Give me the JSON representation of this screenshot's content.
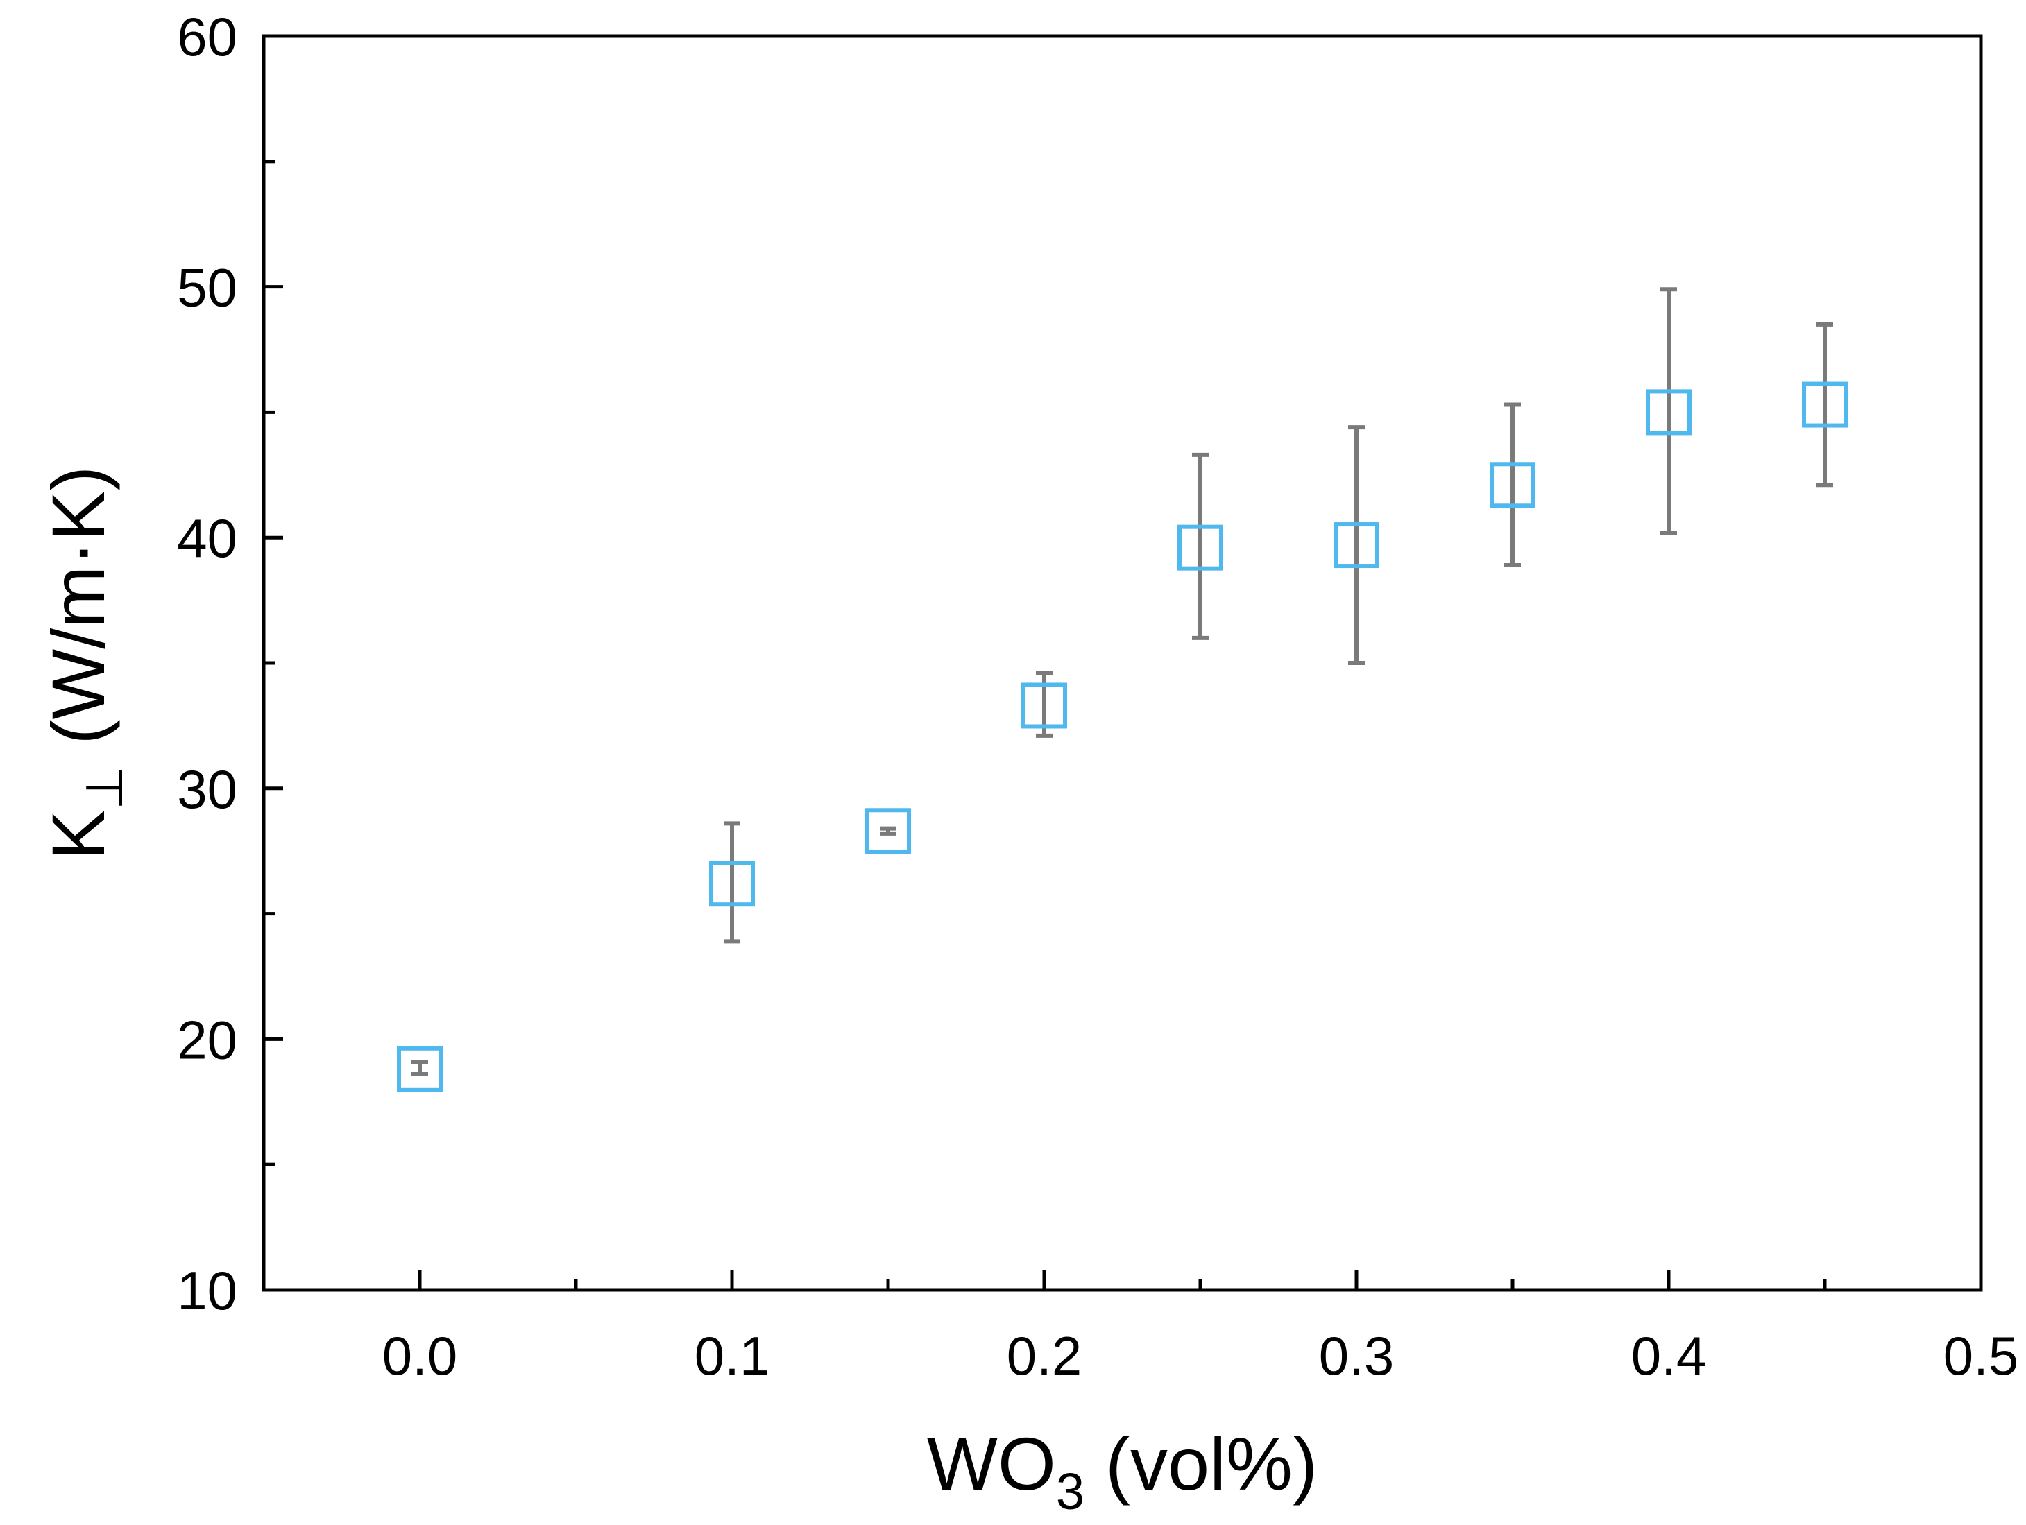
{
  "chart_data": {
    "type": "scatter",
    "xlabel": {
      "main": "WO",
      "sub": "3",
      "rest": " (vol%)"
    },
    "ylabel": {
      "main": "K",
      "sub": "⊥",
      "rest": " (W/m·K)"
    },
    "xlim": [
      -0.05,
      0.5
    ],
    "ylim": [
      10,
      60
    ],
    "x_ticks": [
      0.0,
      0.1,
      0.2,
      0.3,
      0.4,
      0.5
    ],
    "x_tick_labels": [
      "0.0",
      "0.1",
      "0.2",
      "0.3",
      "0.4",
      "0.5"
    ],
    "x_minor_ticks": [
      0.05,
      0.15,
      0.25,
      0.35,
      0.45
    ],
    "y_ticks": [
      10,
      20,
      30,
      40,
      50,
      60
    ],
    "y_tick_labels": [
      "10",
      "20",
      "30",
      "40",
      "50",
      "60"
    ],
    "y_minor_ticks": [
      15,
      25,
      35,
      45,
      55
    ],
    "grid": false,
    "marker": "open-square",
    "marker_color": "#4fb8ee",
    "errorbar_color": "#7a7a7a",
    "points": [
      {
        "x": 0.0,
        "y": 18.8,
        "err_low": 18.6,
        "err_high": 19.1
      },
      {
        "x": 0.1,
        "y": 26.2,
        "err_low": 23.9,
        "err_high": 28.6
      },
      {
        "x": 0.15,
        "y": 28.3,
        "err_low": 28.2,
        "err_high": 28.4
      },
      {
        "x": 0.2,
        "y": 33.3,
        "err_low": 32.1,
        "err_high": 34.6
      },
      {
        "x": 0.25,
        "y": 39.6,
        "err_low": 36.0,
        "err_high": 43.3
      },
      {
        "x": 0.3,
        "y": 39.7,
        "err_low": 35.0,
        "err_high": 44.4
      },
      {
        "x": 0.35,
        "y": 42.1,
        "err_low": 38.9,
        "err_high": 45.3
      },
      {
        "x": 0.4,
        "y": 45.0,
        "err_low": 40.2,
        "err_high": 49.9
      },
      {
        "x": 0.45,
        "y": 45.3,
        "err_low": 42.1,
        "err_high": 48.5
      }
    ]
  }
}
